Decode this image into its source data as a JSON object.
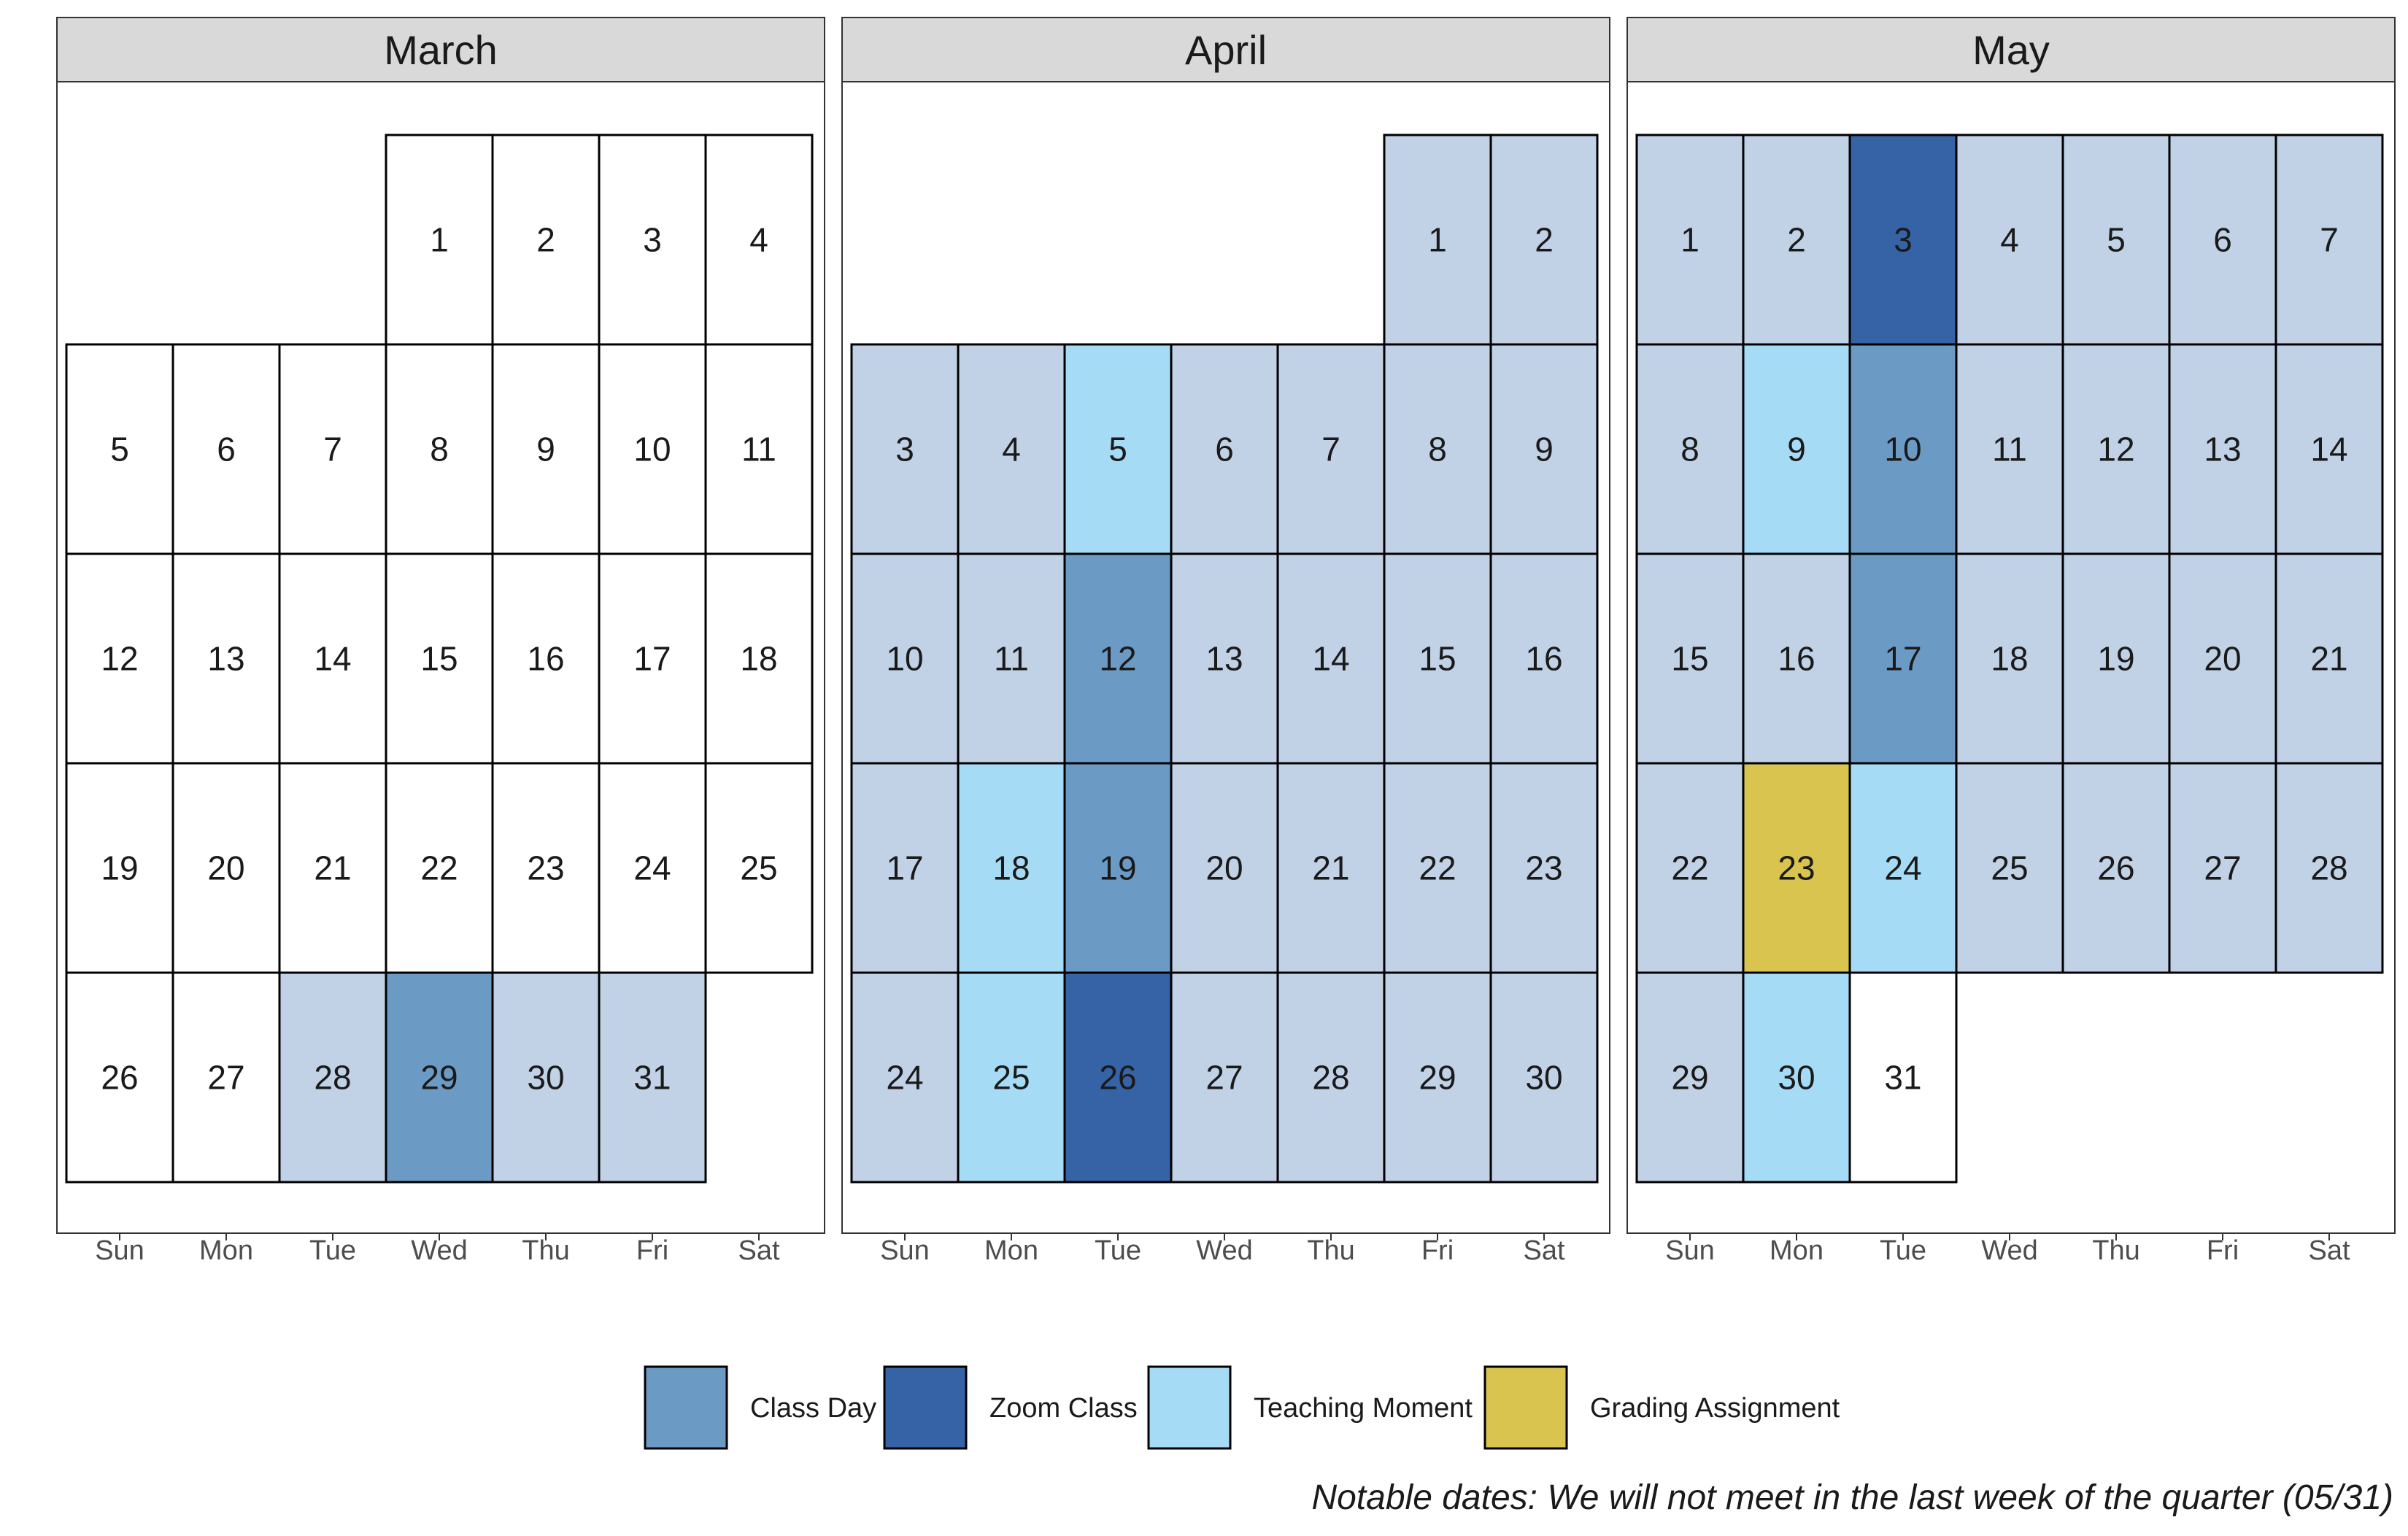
{
  "chart_data": {
    "type": "heatmap",
    "title": "",
    "weekdays": [
      "Sun",
      "Mon",
      "Tue",
      "Wed",
      "Thu",
      "Fri",
      "Sat"
    ],
    "categories": [
      {
        "key": "class",
        "name": "Class Day",
        "color": "#6b9bc4"
      },
      {
        "key": "zoom",
        "name": "Zoom Class",
        "color": "#3563a6"
      },
      {
        "key": "teach",
        "name": "Teaching Moment",
        "color": "#a6dbf5"
      },
      {
        "key": "grade",
        "name": "Grading Assignment",
        "color": "#d9c450"
      }
    ],
    "base_colors": {
      "none": "#ffffff",
      "term": "#c1d1e6"
    },
    "months": [
      {
        "name": "March",
        "first_weekday": 3,
        "days_in_month": 31,
        "term_days": [
          28,
          29,
          30,
          31
        ],
        "highlights": {
          "29": "class"
        }
      },
      {
        "name": "April",
        "first_weekday": 5,
        "days_in_month": 30,
        "term_days": "all",
        "highlights": {
          "5": "teach",
          "12": "class",
          "18": "teach",
          "19": "class",
          "25": "teach",
          "26": "zoom"
        }
      },
      {
        "name": "May",
        "first_weekday": 0,
        "days_in_month": 31,
        "term_days_range": [
          1,
          30
        ],
        "highlights": {
          "3": "zoom",
          "9": "teach",
          "10": "class",
          "17": "class",
          "23": "grade",
          "24": "teach",
          "30": "teach"
        }
      }
    ],
    "caption": "Notable dates: We will not meet in the last week of the quarter (05/31)"
  }
}
